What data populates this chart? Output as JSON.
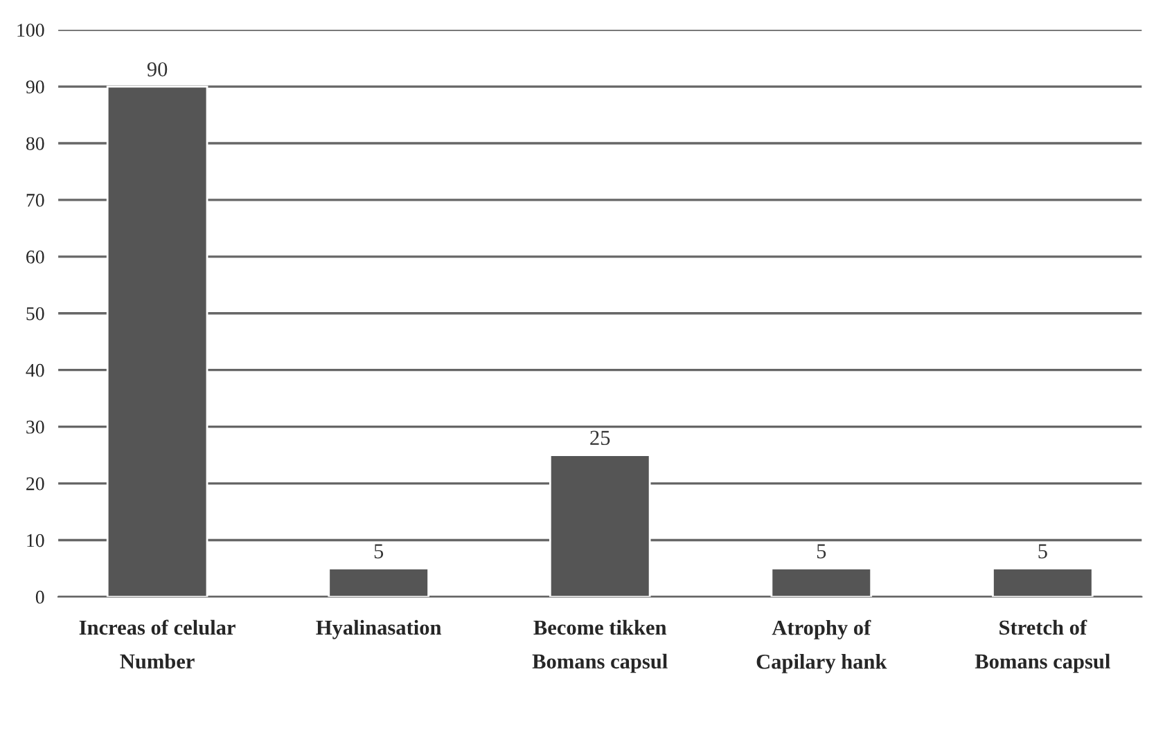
{
  "chart_data": {
    "type": "bar",
    "categories": [
      "Increas of celular\nNumber",
      "Hyalinasation",
      "Become tikken\nBomans capsul",
      "Atrophy of\nCapilary hank",
      "Stretch of\nBomans capsul"
    ],
    "values": [
      90,
      5,
      25,
      5,
      5
    ],
    "color": "#555555",
    "ylim": [
      0,
      100
    ],
    "yticks": [
      0,
      10,
      20,
      30,
      40,
      50,
      60,
      70,
      80,
      90,
      100
    ],
    "grid": "y",
    "data_labels": true
  }
}
